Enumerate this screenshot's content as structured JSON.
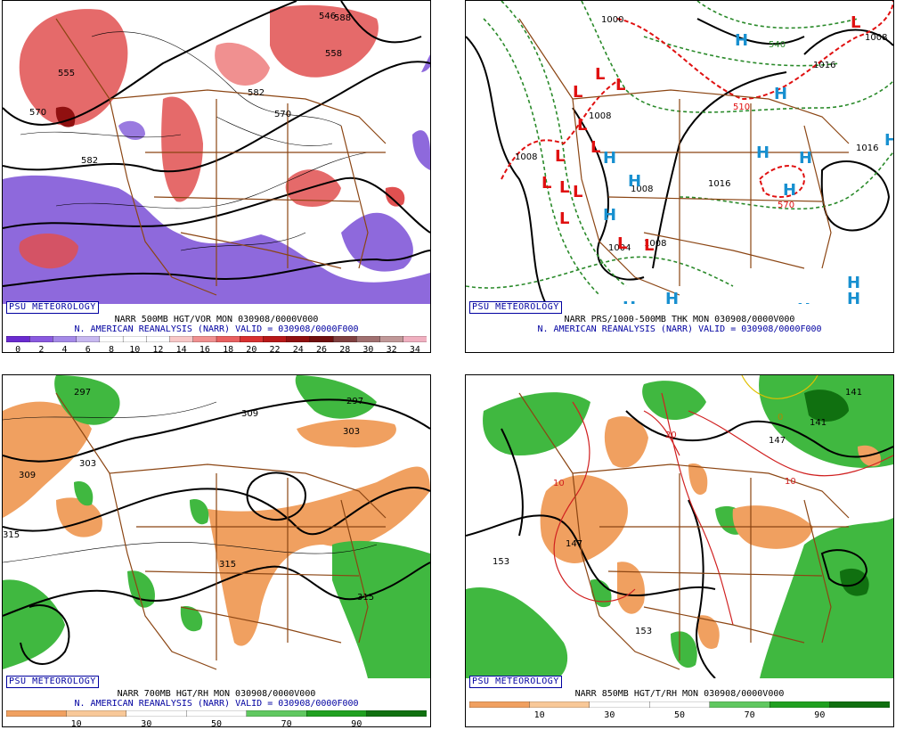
{
  "panels": [
    {
      "id": "p1",
      "badge": "PSU METEOROLOGY",
      "caption1": "NARR 500MB HGT/VOR MON 030908/0000V000",
      "caption2": "N. AMERICAN REANALYSIS (NARR) VALID = 030908/0000F000",
      "colorbar": {
        "labels": [
          "0",
          "2",
          "4",
          "6",
          "8",
          "10",
          "12",
          "14",
          "16",
          "18",
          "20",
          "22",
          "24",
          "26",
          "28",
          "30",
          "32",
          "34"
        ],
        "colors": [
          "#6a2bd0",
          "#8a5ae0",
          "#a58ae8",
          "#c7b8f0",
          "#ffffff",
          "#ffffff",
          "#ffffff",
          "#f8c8c8",
          "#f09090",
          "#e86060",
          "#d83030",
          "#b81818",
          "#901010",
          "#701010",
          "#804040",
          "#a07070",
          "#c09898",
          "#f0b0c0"
        ]
      },
      "contour_labels": [
        "588",
        "555",
        "570",
        "582",
        "546",
        "558",
        "582",
        "570"
      ]
    },
    {
      "id": "p2",
      "badge": "PSU METEOROLOGY",
      "caption1": "NARR PRS/1000-500MB THK MON 030908/0000V000",
      "caption2": "N. AMERICAN REANALYSIS (NARR) VALID = 030908/0000F000",
      "isobar_labels": [
        "1000",
        "1008",
        "1016",
        "1016",
        "1008",
        "1008",
        "1004",
        "1016",
        "1008",
        "1008"
      ],
      "thickness_labels": [
        "570",
        "540",
        "510"
      ],
      "low_symbol": "L",
      "high_symbol": "H"
    },
    {
      "id": "p3",
      "badge": "PSU METEOROLOGY",
      "caption1": "NARR 700MB HGT/RH MON 030908/0000V000",
      "caption2": "N. AMERICAN REANALYSIS (NARR) VALID = 030908/0000F000",
      "colorbar": {
        "labels": [
          "10",
          "30",
          "50",
          "70",
          "90"
        ],
        "colors": [
          "#f0a060",
          "#f8c898",
          "#ffffff",
          "#ffffff",
          "#60c860",
          "#20a020",
          "#107010"
        ]
      },
      "contour_labels": [
        "297",
        "309",
        "297",
        "309",
        "303",
        "303",
        "315",
        "315",
        "315"
      ]
    },
    {
      "id": "p4",
      "badge": "PSU METEOROLOGY",
      "caption1": "NARR 850MB HGT/T/RH MON 030908/0000V000",
      "caption2": "",
      "colorbar": {
        "labels": [
          "10",
          "30",
          "50",
          "70",
          "90"
        ],
        "colors": [
          "#f0a060",
          "#f8c898",
          "#ffffff",
          "#ffffff",
          "#60c860",
          "#20a020",
          "#107010"
        ]
      },
      "contour_labels": [
        "153",
        "147",
        "141",
        "141",
        "147",
        "153"
      ],
      "temp_labels": [
        "10",
        "20",
        "10",
        "0"
      ]
    }
  ],
  "colors": {
    "border": "#8b4513",
    "vort_low": "#7a4fd6",
    "vort_high": "#e05050",
    "rh_dry": "#f0a060",
    "rh_moist": "#40b840",
    "low": "#e01010",
    "high": "#1890d0",
    "thickness": "#2a8a2a"
  }
}
